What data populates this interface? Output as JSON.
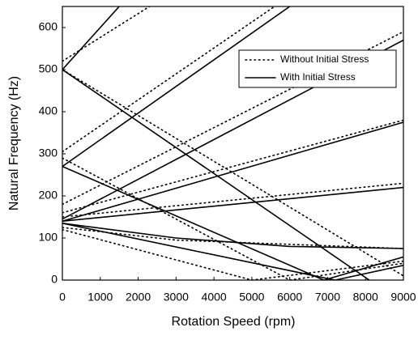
{
  "chart_data": {
    "type": "line",
    "xlabel": "Rotation Speed (rpm)",
    "ylabel": "Natural Frequency (Hz)",
    "xlim": [
      0,
      9000
    ],
    "ylim": [
      0,
      650
    ],
    "xticks": [
      0,
      1000,
      2000,
      3000,
      4000,
      5000,
      6000,
      7000,
      8000,
      9000
    ],
    "yticks": [
      0,
      100,
      200,
      300,
      400,
      500,
      600
    ],
    "legend": "upper right",
    "series": [
      {
        "name": "Without Initial Stress",
        "color": "#000000",
        "dash": "dotted",
        "lines": [
          {
            "x": [
              0,
              2300
            ],
            "values": [
              520,
              650
            ]
          },
          {
            "x": [
              0,
              5600
            ],
            "values": [
              305,
              650
            ]
          },
          {
            "x": [
              0,
              9000
            ],
            "values": [
              180,
              590
            ]
          },
          {
            "x": [
              0,
              9000
            ],
            "values": [
              160,
              380
            ]
          },
          {
            "x": [
              0,
              9000
            ],
            "values": [
              150,
              230
            ]
          },
          {
            "x": [
              0,
              3000,
              9000
            ],
            "values": [
              125,
              95,
              75
            ]
          },
          {
            "x": [
              0,
              9000
            ],
            "values": [
              500,
              10
            ]
          },
          {
            "x": [
              0,
              6000,
              9000
            ],
            "values": [
              290,
              0,
              40
            ]
          },
          {
            "x": [
              0,
              5000,
              9000
            ],
            "values": [
              120,
              0,
              45
            ]
          }
        ]
      },
      {
        "name": "With Initial Stress",
        "color": "#000000",
        "dash": "solid",
        "lines": [
          {
            "x": [
              0,
              1500
            ],
            "values": [
              500,
              650
            ]
          },
          {
            "x": [
              0,
              6000
            ],
            "values": [
              270,
              650
            ]
          },
          {
            "x": [
              0,
              9000
            ],
            "values": [
              145,
              570
            ]
          },
          {
            "x": [
              0,
              9000
            ],
            "values": [
              140,
              375
            ]
          },
          {
            "x": [
              0,
              9000
            ],
            "values": [
              140,
              220
            ]
          },
          {
            "x": [
              0,
              3000,
              6000,
              9000
            ],
            "values": [
              135,
              100,
              80,
              75
            ]
          },
          {
            "x": [
              0,
              8100
            ],
            "values": [
              500,
              0
            ]
          },
          {
            "x": [
              0,
              6900,
              9000
            ],
            "values": [
              270,
              0,
              55
            ]
          },
          {
            "x": [
              0,
              7200,
              9000
            ],
            "values": [
              135,
              0,
              35
            ]
          }
        ]
      }
    ]
  }
}
